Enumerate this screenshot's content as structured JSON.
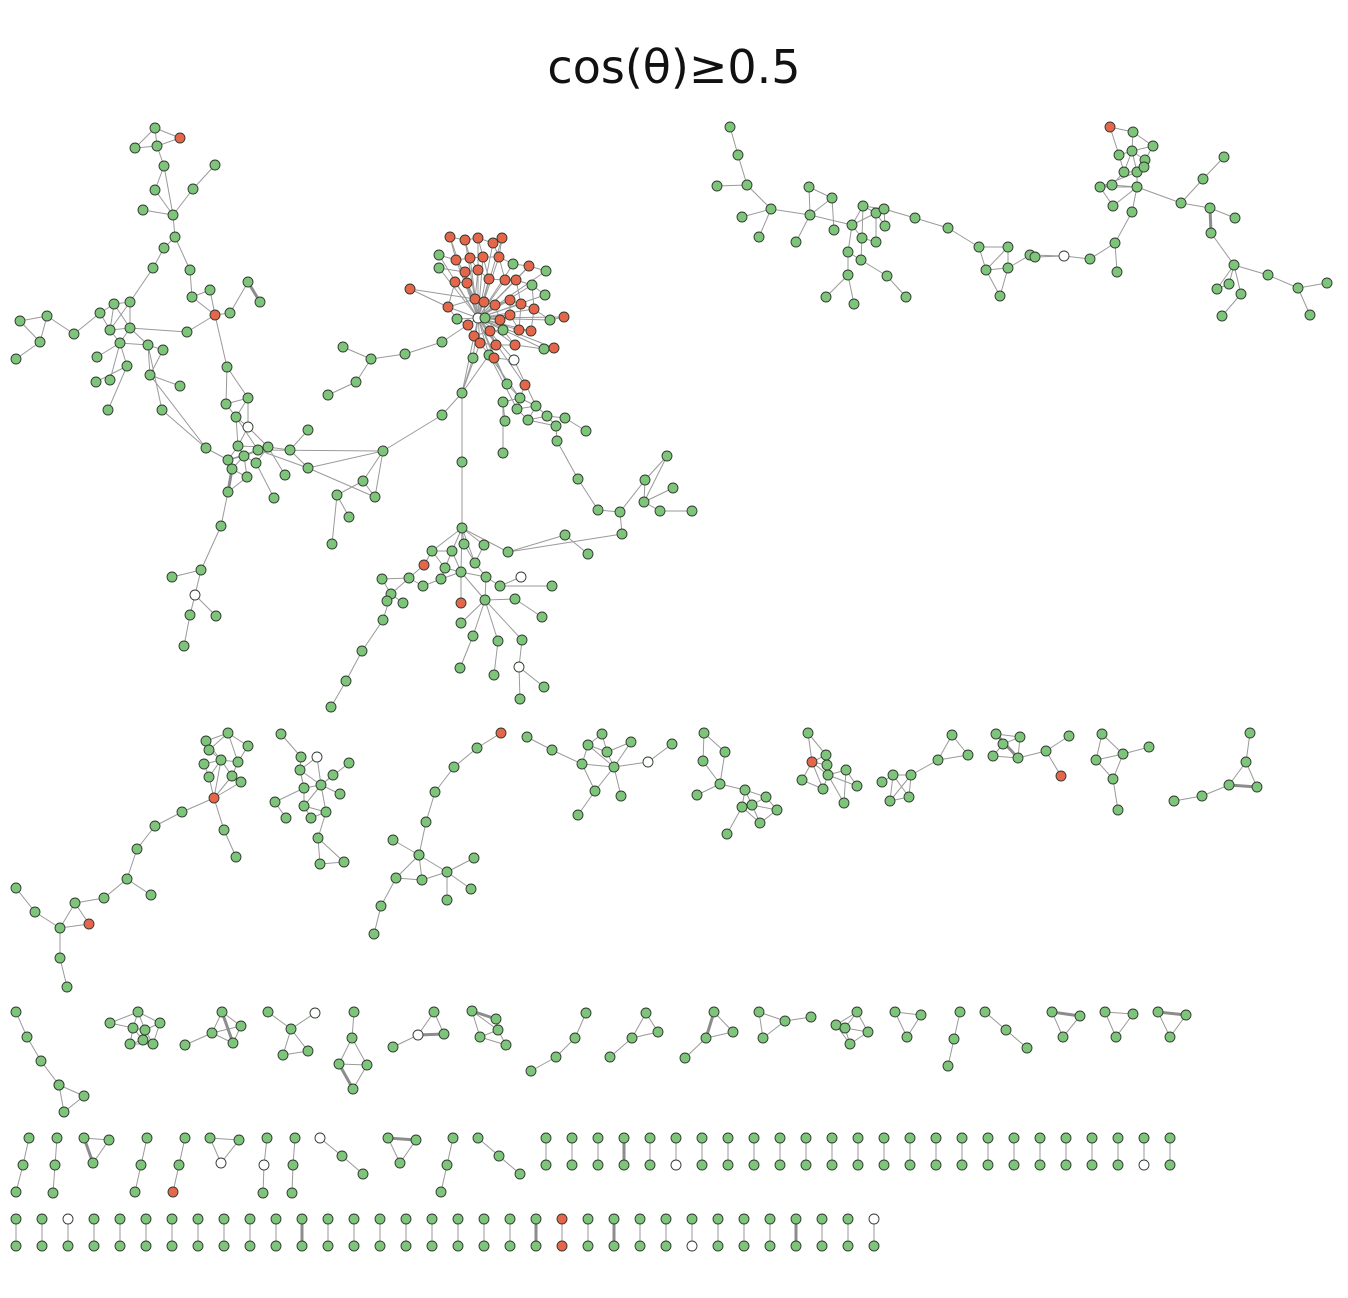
{
  "title": "cos(θ)≥0.5",
  "colors": {
    "green": "#7ec47a",
    "red": "#e5664b",
    "white": "#ffffff"
  },
  "legend": []
}
